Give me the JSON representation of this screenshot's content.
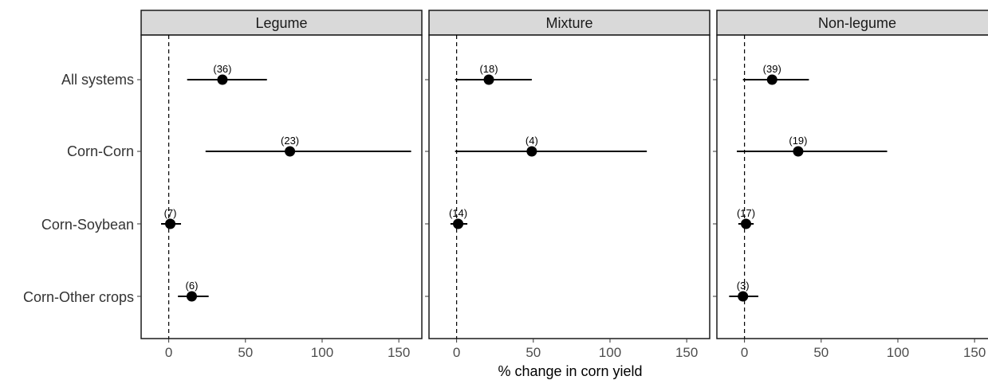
{
  "chart_data": {
    "type": "scatter",
    "xlabel": "% change in corn yield",
    "ylabel": "",
    "xlim": [
      -18,
      165
    ],
    "xticks": [
      0,
      50,
      100,
      150
    ],
    "grid": false,
    "categories": [
      "All systems",
      "Corn-Corn",
      "Corn-Soybean",
      "Corn-Other crops"
    ],
    "panels": [
      {
        "name": "Legume",
        "points": [
          {
            "category": "All systems",
            "estimate": 35,
            "lower": 12,
            "upper": 64,
            "n": "(36)"
          },
          {
            "category": "Corn-Corn",
            "estimate": 79,
            "lower": 24,
            "upper": 158,
            "n": "(23)"
          },
          {
            "category": "Corn-Soybean",
            "estimate": 1,
            "lower": -5,
            "upper": 8,
            "n": "(7)"
          },
          {
            "category": "Corn-Other crops",
            "estimate": 15,
            "lower": 6,
            "upper": 26,
            "n": "(6)"
          }
        ]
      },
      {
        "name": "Mixture",
        "points": [
          {
            "category": "All systems",
            "estimate": 21,
            "lower": -1,
            "upper": 49,
            "n": "(18)"
          },
          {
            "category": "Corn-Corn",
            "estimate": 49,
            "lower": -1,
            "upper": 124,
            "n": "(4)"
          },
          {
            "category": "Corn-Soybean",
            "estimate": 1,
            "lower": -4,
            "upper": 7,
            "n": "(14)"
          }
        ]
      },
      {
        "name": "Non-legume",
        "points": [
          {
            "category": "All systems",
            "estimate": 18,
            "lower": -1,
            "upper": 42,
            "n": "(39)"
          },
          {
            "category": "Corn-Corn",
            "estimate": 35,
            "lower": -5,
            "upper": 93,
            "n": "(19)"
          },
          {
            "category": "Corn-Soybean",
            "estimate": 1,
            "lower": -4,
            "upper": 6,
            "n": "(17)"
          },
          {
            "category": "Corn-Other crops",
            "estimate": -1,
            "lower": -10,
            "upper": 9,
            "n": "(3)"
          }
        ]
      }
    ]
  }
}
